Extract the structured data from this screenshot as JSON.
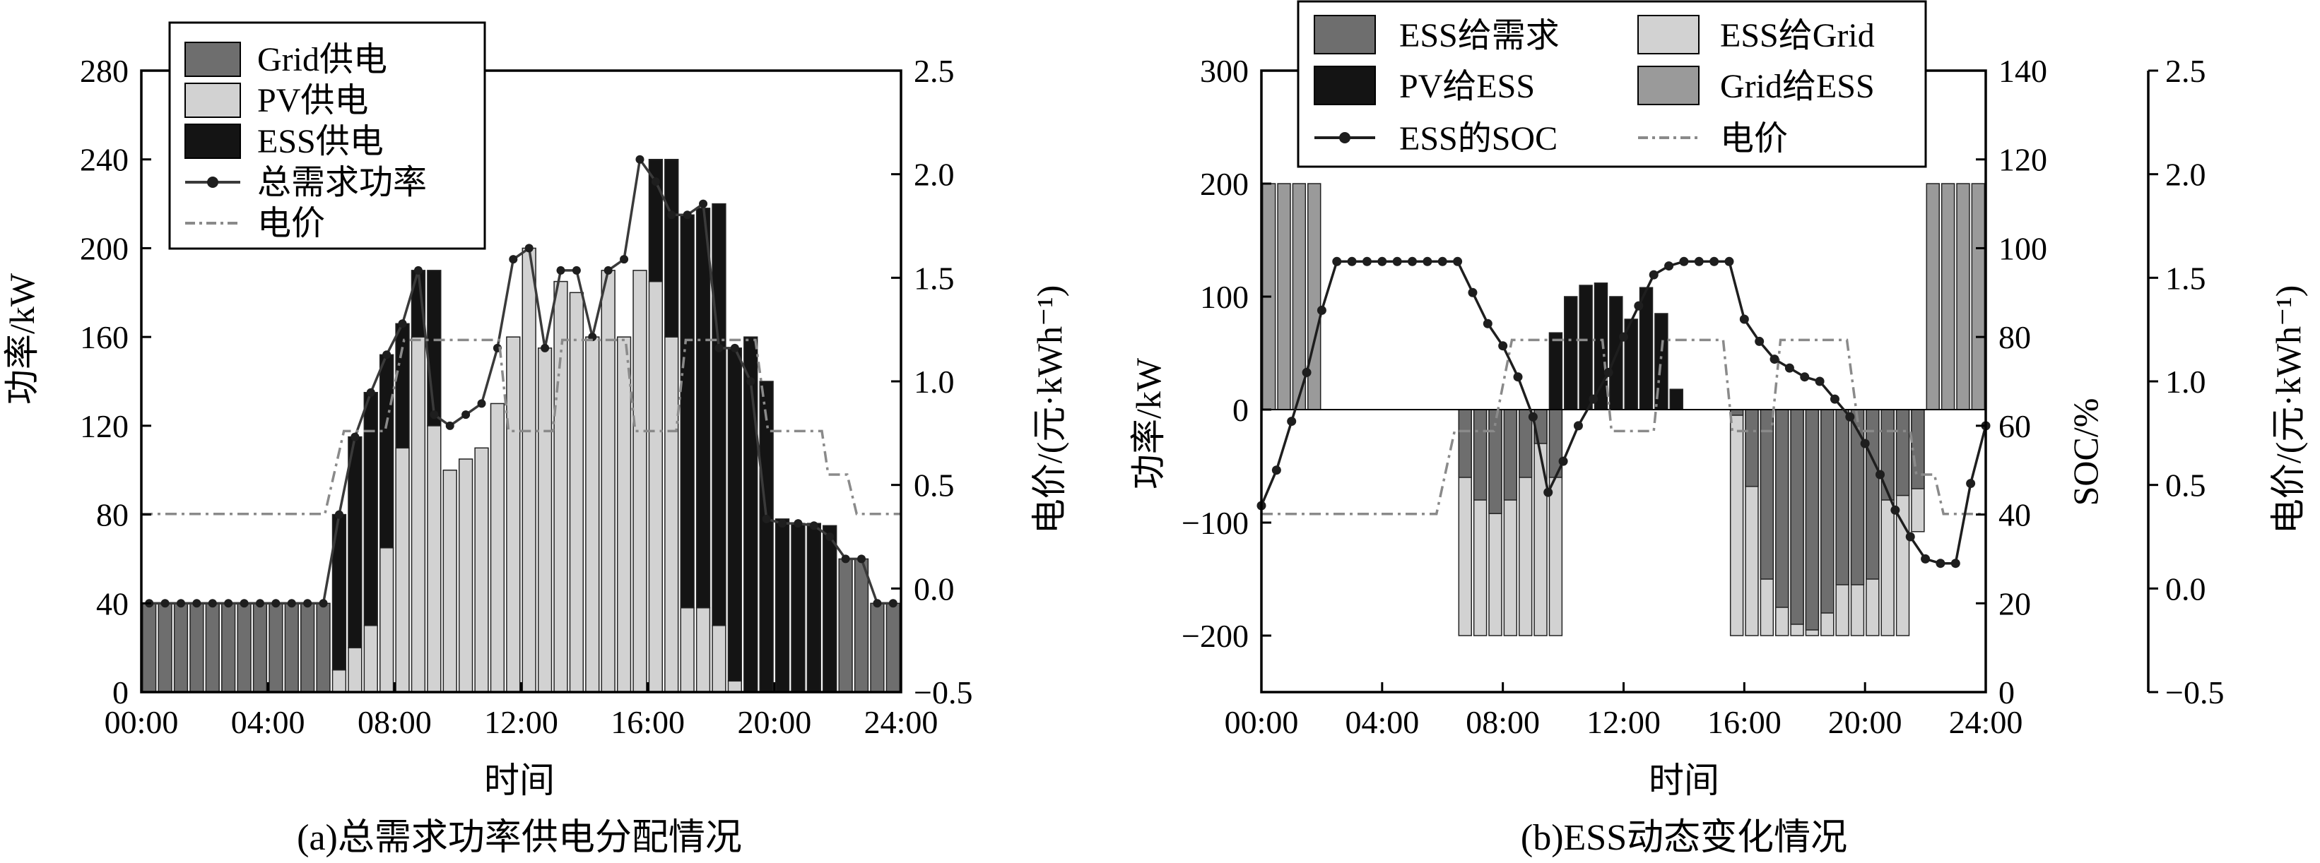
{
  "colors": {
    "grid": "#6e6e6e",
    "pv": "#d2d2d2",
    "ess": "#141414",
    "demand": "#3a3a3a",
    "price": "#8a8a8a",
    "ess_to_demand": "#6e6e6e",
    "pv_to_ess": "#141414",
    "ess_to_grid": "#d2d2d2",
    "grid_to_ess": "#9a9a9a",
    "soc": "#1e1e1e"
  },
  "chart_data": [
    {
      "id": "a",
      "type": "bar",
      "caption": "(a)总需求功率供电分配情况",
      "xlabel": "时间",
      "ylabel": "功率/kW",
      "ylabel_right": "电价/(元·kWh⁻¹)",
      "x_ticks": [
        "00:00",
        "04:00",
        "08:00",
        "12:00",
        "16:00",
        "20:00",
        "24:00"
      ],
      "x_range": [
        0,
        24
      ],
      "ylim": [
        0,
        280
      ],
      "y_ticks": [
        0,
        40,
        80,
        120,
        160,
        200,
        240,
        280
      ],
      "ylim_right": [
        -0.5,
        2.5
      ],
      "y_ticks_right": [
        "−0.5",
        "0.0",
        "0.5",
        "1.0",
        "1.5",
        "2.0",
        "2.5"
      ],
      "legend": {
        "position": "top-left",
        "items": [
          "Grid供电",
          "PV供电",
          "ESS供电",
          "总需求功率",
          "电价"
        ]
      },
      "x": [
        0,
        0.5,
        1,
        1.5,
        2,
        2.5,
        3,
        3.5,
        4,
        4.5,
        5,
        5.5,
        6,
        6.5,
        7,
        7.5,
        8,
        8.5,
        9,
        9.5,
        10,
        10.5,
        11,
        11.5,
        12,
        12.5,
        13,
        13.5,
        14,
        14.5,
        15,
        15.5,
        16,
        16.5,
        17,
        17.5,
        18,
        18.5,
        19,
        19.5,
        20,
        20.5,
        21,
        21.5,
        22,
        22.5,
        23,
        23.5
      ],
      "series": [
        {
          "name": "Grid供电",
          "values": [
            40,
            40,
            40,
            40,
            40,
            40,
            40,
            40,
            40,
            40,
            40,
            40,
            0,
            0,
            0,
            0,
            0,
            0,
            0,
            0,
            0,
            0,
            0,
            0,
            0,
            0,
            0,
            0,
            0,
            0,
            0,
            0,
            0,
            0,
            0,
            0,
            0,
            0,
            0,
            0,
            0,
            0,
            0,
            0,
            60,
            60,
            40,
            40
          ]
        },
        {
          "name": "PV供电",
          "values": [
            0,
            0,
            0,
            0,
            0,
            0,
            0,
            0,
            0,
            0,
            0,
            0,
            10,
            20,
            30,
            65,
            110,
            160,
            120,
            100,
            105,
            110,
            130,
            160,
            200,
            155,
            185,
            180,
            160,
            190,
            160,
            190,
            185,
            160,
            38,
            38,
            30,
            5,
            0,
            0,
            0,
            0,
            0,
            0,
            0,
            0,
            0,
            0
          ]
        },
        {
          "name": "ESS供电",
          "values": [
            0,
            0,
            0,
            0,
            0,
            0,
            0,
            0,
            0,
            0,
            0,
            0,
            70,
            95,
            105,
            87,
            56,
            30,
            70,
            0,
            0,
            0,
            0,
            0,
            0,
            0,
            0,
            0,
            0,
            0,
            0,
            0,
            55,
            80,
            177,
            180,
            190,
            150,
            160,
            140,
            78,
            76,
            76,
            75,
            0,
            0,
            0,
            0
          ]
        },
        {
          "name": "总需求功率",
          "values": [
            40,
            40,
            40,
            40,
            40,
            40,
            40,
            40,
            40,
            40,
            40,
            40,
            80,
            115,
            135,
            152,
            166,
            190,
            125,
            120,
            125,
            130,
            155,
            195,
            200,
            155,
            190,
            190,
            160,
            190,
            195,
            240,
            230,
            215,
            215,
            220,
            155,
            155,
            140,
            78,
            76,
            76,
            75,
            70,
            60,
            60,
            40,
            40
          ]
        },
        {
          "name": "电价",
          "x": [
            0,
            5.8,
            6.4,
            7.7,
            8.3,
            11.3,
            11.6,
            13.0,
            13.3,
            15.3,
            15.6,
            16.9,
            17.2,
            19.4,
            19.8,
            21.5,
            21.7,
            22.3,
            22.6,
            24
          ],
          "values": [
            0.36,
            0.36,
            0.76,
            0.76,
            1.2,
            1.2,
            0.76,
            0.76,
            1.2,
            1.2,
            0.76,
            0.76,
            1.2,
            1.2,
            0.76,
            0.76,
            0.55,
            0.55,
            0.36,
            0.36
          ]
        }
      ]
    },
    {
      "id": "b",
      "type": "bar",
      "caption": "(b)ESS动态变化情况",
      "xlabel": "时间",
      "ylabel": "功率/kW",
      "ylabel_soc": "SOC/%",
      "ylabel_right": "电价/(元·kWh⁻¹)",
      "x_ticks": [
        "00:00",
        "04:00",
        "08:00",
        "12:00",
        "16:00",
        "20:00",
        "24:00"
      ],
      "x_range": [
        0,
        24
      ],
      "ylim": [
        -250,
        300
      ],
      "y_ticks": [
        "−200",
        "−100",
        "0",
        "100",
        "200",
        "300"
      ],
      "ylim_soc": [
        0,
        140
      ],
      "y_ticks_soc": [
        0,
        20,
        40,
        60,
        80,
        100,
        120,
        140
      ],
      "ylim_right": [
        -0.5,
        2.5
      ],
      "y_ticks_right": [
        "−0.5",
        "0.0",
        "0.5",
        "1.0",
        "1.5",
        "2.0",
        "2.5"
      ],
      "legend": {
        "position": "top",
        "items": [
          "ESS给需求",
          "ESS给Grid",
          "PV给ESS",
          "Grid给ESS",
          "ESS的SOC",
          "电价"
        ]
      },
      "grid_to_ess": {
        "x": [
          0,
          0.5,
          1,
          1.5,
          22,
          22.5,
          23,
          23.5
        ],
        "values": [
          200,
          200,
          200,
          200,
          200,
          200,
          200,
          200
        ]
      },
      "pv_to_ess": {
        "x": [
          9.5,
          10,
          10.5,
          11,
          11.5,
          12,
          12.5,
          13,
          13.5
        ],
        "values": [
          68,
          100,
          110,
          112,
          100,
          80,
          108,
          85,
          18
        ]
      },
      "ess_to_demand": {
        "x": [
          6.5,
          7,
          7.5,
          8,
          8.5,
          9,
          9.5,
          10,
          15.5,
          16,
          16.5,
          17,
          17.5,
          18,
          18.5,
          19,
          19.5,
          20,
          20.5,
          21,
          21.5
        ],
        "values": [
          -60,
          -80,
          -92,
          -80,
          -60,
          -30,
          -60,
          0,
          -5,
          -68,
          -150,
          -175,
          -190,
          -195,
          -180,
          -155,
          -155,
          -150,
          -80,
          -76,
          -70
        ]
      },
      "ess_to_grid": {
        "x": [
          6.5,
          7,
          7.5,
          8,
          8.5,
          9,
          9.5,
          10,
          15.5,
          16,
          16.5,
          17,
          17.5,
          18,
          18.5,
          19,
          19.5,
          20,
          20.5,
          21,
          21.5
        ],
        "values": [
          -200,
          -200,
          -200,
          -200,
          -200,
          -200,
          -200,
          0,
          -200,
          -200,
          -200,
          -200,
          -200,
          -200,
          -200,
          -200,
          -200,
          -200,
          -200,
          -200,
          -108
        ]
      },
      "soc": {
        "name": "ESS的SOC",
        "x": [
          0,
          0.5,
          1,
          1.5,
          2,
          2.5,
          3,
          3.5,
          4,
          4.5,
          5,
          5.5,
          6,
          6.5,
          7,
          7.5,
          8,
          8.5,
          9,
          9.5,
          10,
          10.5,
          11,
          11.5,
          12,
          12.5,
          13,
          13.5,
          14,
          14.5,
          15,
          15.5,
          16,
          16.5,
          17,
          17.5,
          18,
          18.5,
          19,
          19.5,
          20,
          20.5,
          21,
          21.5,
          22,
          22.5,
          23,
          23.5,
          24
        ],
        "values": [
          42,
          50,
          61,
          72,
          86,
          97,
          97,
          97,
          97,
          97,
          97,
          97,
          97,
          97,
          90,
          83,
          78,
          71,
          62,
          45,
          52,
          60,
          66,
          72,
          80,
          87,
          94,
          96,
          97,
          97,
          97,
          97,
          84,
          79,
          75,
          73,
          71,
          70,
          66,
          62,
          56,
          49,
          41,
          35,
          30,
          29,
          29,
          47,
          60
        ]
      },
      "price": {
        "name": "电价",
        "x": [
          0,
          5.8,
          6.4,
          7.7,
          8.3,
          11.3,
          11.6,
          13.0,
          13.3,
          15.3,
          15.6,
          16.9,
          17.2,
          19.4,
          19.8,
          21.5,
          21.7,
          22.3,
          22.6,
          24
        ],
        "values": [
          0.36,
          0.36,
          0.76,
          0.76,
          1.2,
          1.2,
          0.76,
          0.76,
          1.2,
          1.2,
          0.76,
          0.76,
          1.2,
          1.2,
          0.76,
          0.76,
          0.55,
          0.55,
          0.36,
          0.36
        ]
      }
    }
  ]
}
